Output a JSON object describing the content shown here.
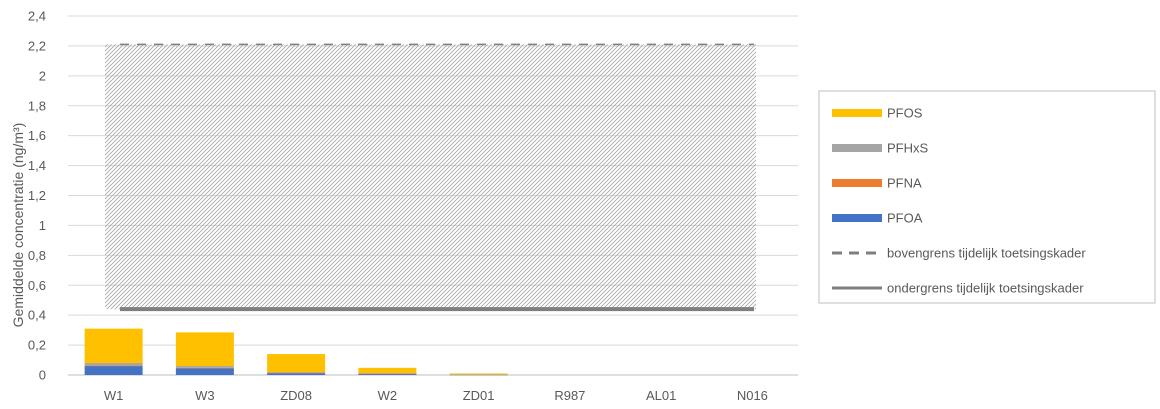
{
  "chart_data": {
    "type": "bar",
    "stacked": true,
    "title": "",
    "xlabel": "",
    "ylabel": "Gemiddelde concentratie (ng/m³)",
    "ylim": [
      0,
      2.4
    ],
    "y_ticks": [
      "0",
      "0,2",
      "0,4",
      "0,6",
      "0,8",
      "1",
      "1,2",
      "1,4",
      "1,6",
      "1,8",
      "2",
      "2,2",
      "2,4"
    ],
    "y_tick_values": [
      0,
      0.2,
      0.4,
      0.6,
      0.8,
      1.0,
      1.2,
      1.4,
      1.6,
      1.8,
      2.0,
      2.2,
      2.4
    ],
    "grid": true,
    "legend_position": "right",
    "categories": [
      "W1",
      "W3",
      "ZD08",
      "W2",
      "ZD01",
      "R987",
      "AL01",
      "N016"
    ],
    "series": [
      {
        "name": "PFOA",
        "color": "#4472c4",
        "values": [
          0.06,
          0.045,
          0.012,
          0.008,
          0.002,
          0,
          0,
          0
        ]
      },
      {
        "name": "PFNA",
        "color": "#ed7d31",
        "values": [
          0.003,
          0.003,
          0.002,
          0.001,
          0,
          0,
          0,
          0
        ]
      },
      {
        "name": "PFHxS",
        "color": "#a5a5a5",
        "values": [
          0.017,
          0.012,
          0.006,
          0.004,
          0.001,
          0,
          0,
          0
        ]
      },
      {
        "name": "PFOS",
        "color": "#ffc000",
        "values": [
          0.23,
          0.225,
          0.12,
          0.035,
          0.007,
          0,
          0,
          0
        ]
      }
    ],
    "reference_lines": [
      {
        "name": "bovengrens tijdelijk toetsingskader",
        "value": 2.21,
        "style": "dashed",
        "color": "#7f7f7f"
      },
      {
        "name": "ondergrens tijdelijk toetsingskader",
        "value": 0.44,
        "style": "solid",
        "color": "#7f7f7f"
      }
    ],
    "range_band": {
      "from": 0.44,
      "to": 2.21,
      "pattern": "diagonal-hatch",
      "color": "#a6a6a6"
    },
    "legend_items": [
      {
        "label": "PFOS",
        "color": "#ffc000",
        "kind": "bar"
      },
      {
        "label": "PFHxS",
        "color": "#a5a5a5",
        "kind": "bar"
      },
      {
        "label": "PFNA",
        "color": "#ed7d31",
        "kind": "bar"
      },
      {
        "label": "PFOA",
        "color": "#4472c4",
        "kind": "bar"
      },
      {
        "label": "bovengrens tijdelijk toetsingskader",
        "color": "#7f7f7f",
        "kind": "dashed-line"
      },
      {
        "label": "ondergrens tijdelijk toetsingskader",
        "color": "#7f7f7f",
        "kind": "solid-line"
      }
    ]
  }
}
